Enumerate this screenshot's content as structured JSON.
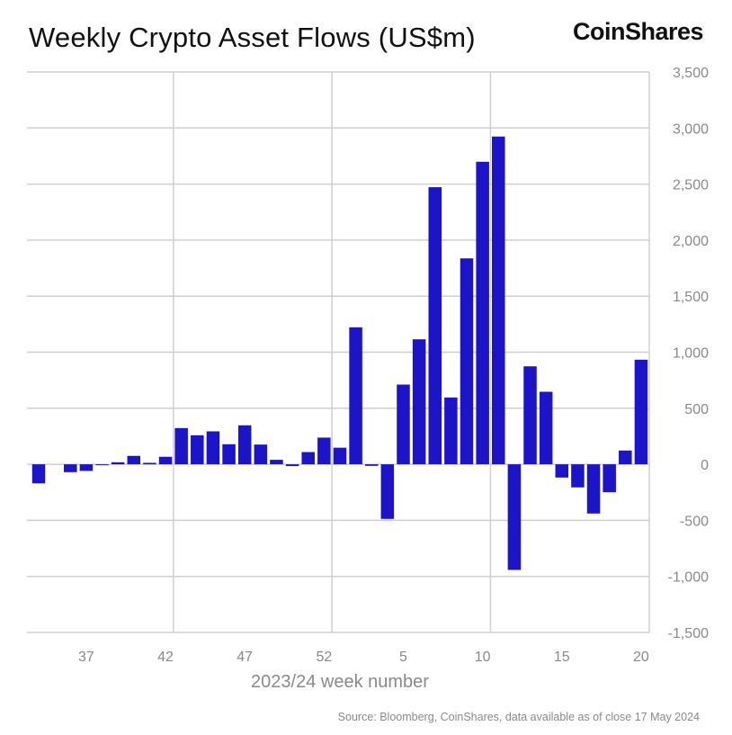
{
  "chart_data": {
    "type": "bar",
    "title": "Weekly Crypto Asset Flows (US$m)",
    "xlabel": "2023/24 week number",
    "ylabel": "",
    "ylim": [
      -1500,
      3500
    ],
    "yticks": [
      -1500,
      -1000,
      -500,
      0,
      500,
      1000,
      1500,
      2000,
      2500,
      3000,
      3500
    ],
    "ytick_labels": [
      "-1,500",
      "-1,000",
      "-500",
      "0",
      "500",
      "1,000",
      "1,500",
      "2,000",
      "2,500",
      "3,000",
      "3,500"
    ],
    "xtick_labels": [
      "37",
      "42",
      "47",
      "52",
      "5",
      "10",
      "15",
      "20"
    ],
    "grid": true,
    "y_axis_side": "right",
    "bar_color": "#1b14c8",
    "categories": [
      "34",
      "35",
      "36",
      "37",
      "38",
      "39",
      "40",
      "41",
      "42",
      "43",
      "44",
      "45",
      "46",
      "47",
      "48",
      "49",
      "50",
      "51",
      "52",
      "1",
      "2",
      "3",
      "4",
      "5",
      "6",
      "7",
      "8",
      "9",
      "10",
      "11",
      "12",
      "13",
      "14",
      "15",
      "16",
      "17",
      "18",
      "19",
      "20"
    ],
    "values": [
      -170,
      0,
      -70,
      -59,
      -5,
      18,
      75,
      13,
      67,
      323,
      259,
      294,
      179,
      348,
      176,
      40,
      -16,
      109,
      238,
      148,
      1222,
      -14,
      -487,
      711,
      1115,
      2472,
      596,
      1837,
      2699,
      2924,
      -942,
      874,
      647,
      -118,
      -206,
      -439,
      -249,
      123,
      933
    ]
  },
  "brand": {
    "logo_text": "CoinShares"
  },
  "source": "Source: Bloomberg, CoinShares, data available as of close 17 May 2024"
}
